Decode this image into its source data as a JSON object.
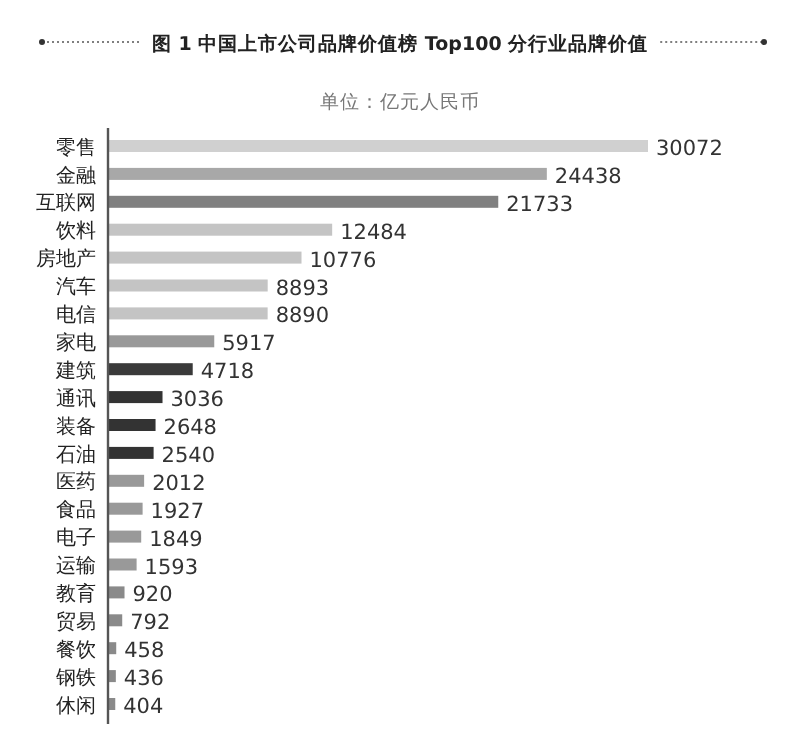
{
  "chart_data": {
    "type": "bar",
    "orientation": "horizontal",
    "title": "图 1  中国上市公司品牌价值榜 Top100 分行业品牌价值",
    "subtitle": "单位：亿元人民币",
    "categories": [
      "零售",
      "金融",
      "互联网",
      "饮料",
      "房地产",
      "汽车",
      "电信",
      "家电",
      "建筑",
      "通讯",
      "装备",
      "石油",
      "医药",
      "食品",
      "电子",
      "运输",
      "教育",
      "贸易",
      "餐饮",
      "钢铁",
      "休闲"
    ],
    "values": [
      30072,
      24438,
      21733,
      12484,
      10776,
      8893,
      8890,
      5917,
      4718,
      3036,
      2648,
      2540,
      2012,
      1927,
      1849,
      1593,
      920,
      792,
      458,
      436,
      404
    ],
    "colors": [
      "#d0d0d0",
      "#a8a8a8",
      "#808080",
      "#c4c4c4",
      "#c4c4c4",
      "#c4c4c4",
      "#c4c4c4",
      "#999999",
      "#3a3a3a",
      "#333333",
      "#333333",
      "#333333",
      "#999999",
      "#999999",
      "#999999",
      "#999999",
      "#8a8a8a",
      "#8a8a8a",
      "#8a8a8a",
      "#8a8a8a",
      "#8a8a8a"
    ],
    "data_labels": true
  }
}
